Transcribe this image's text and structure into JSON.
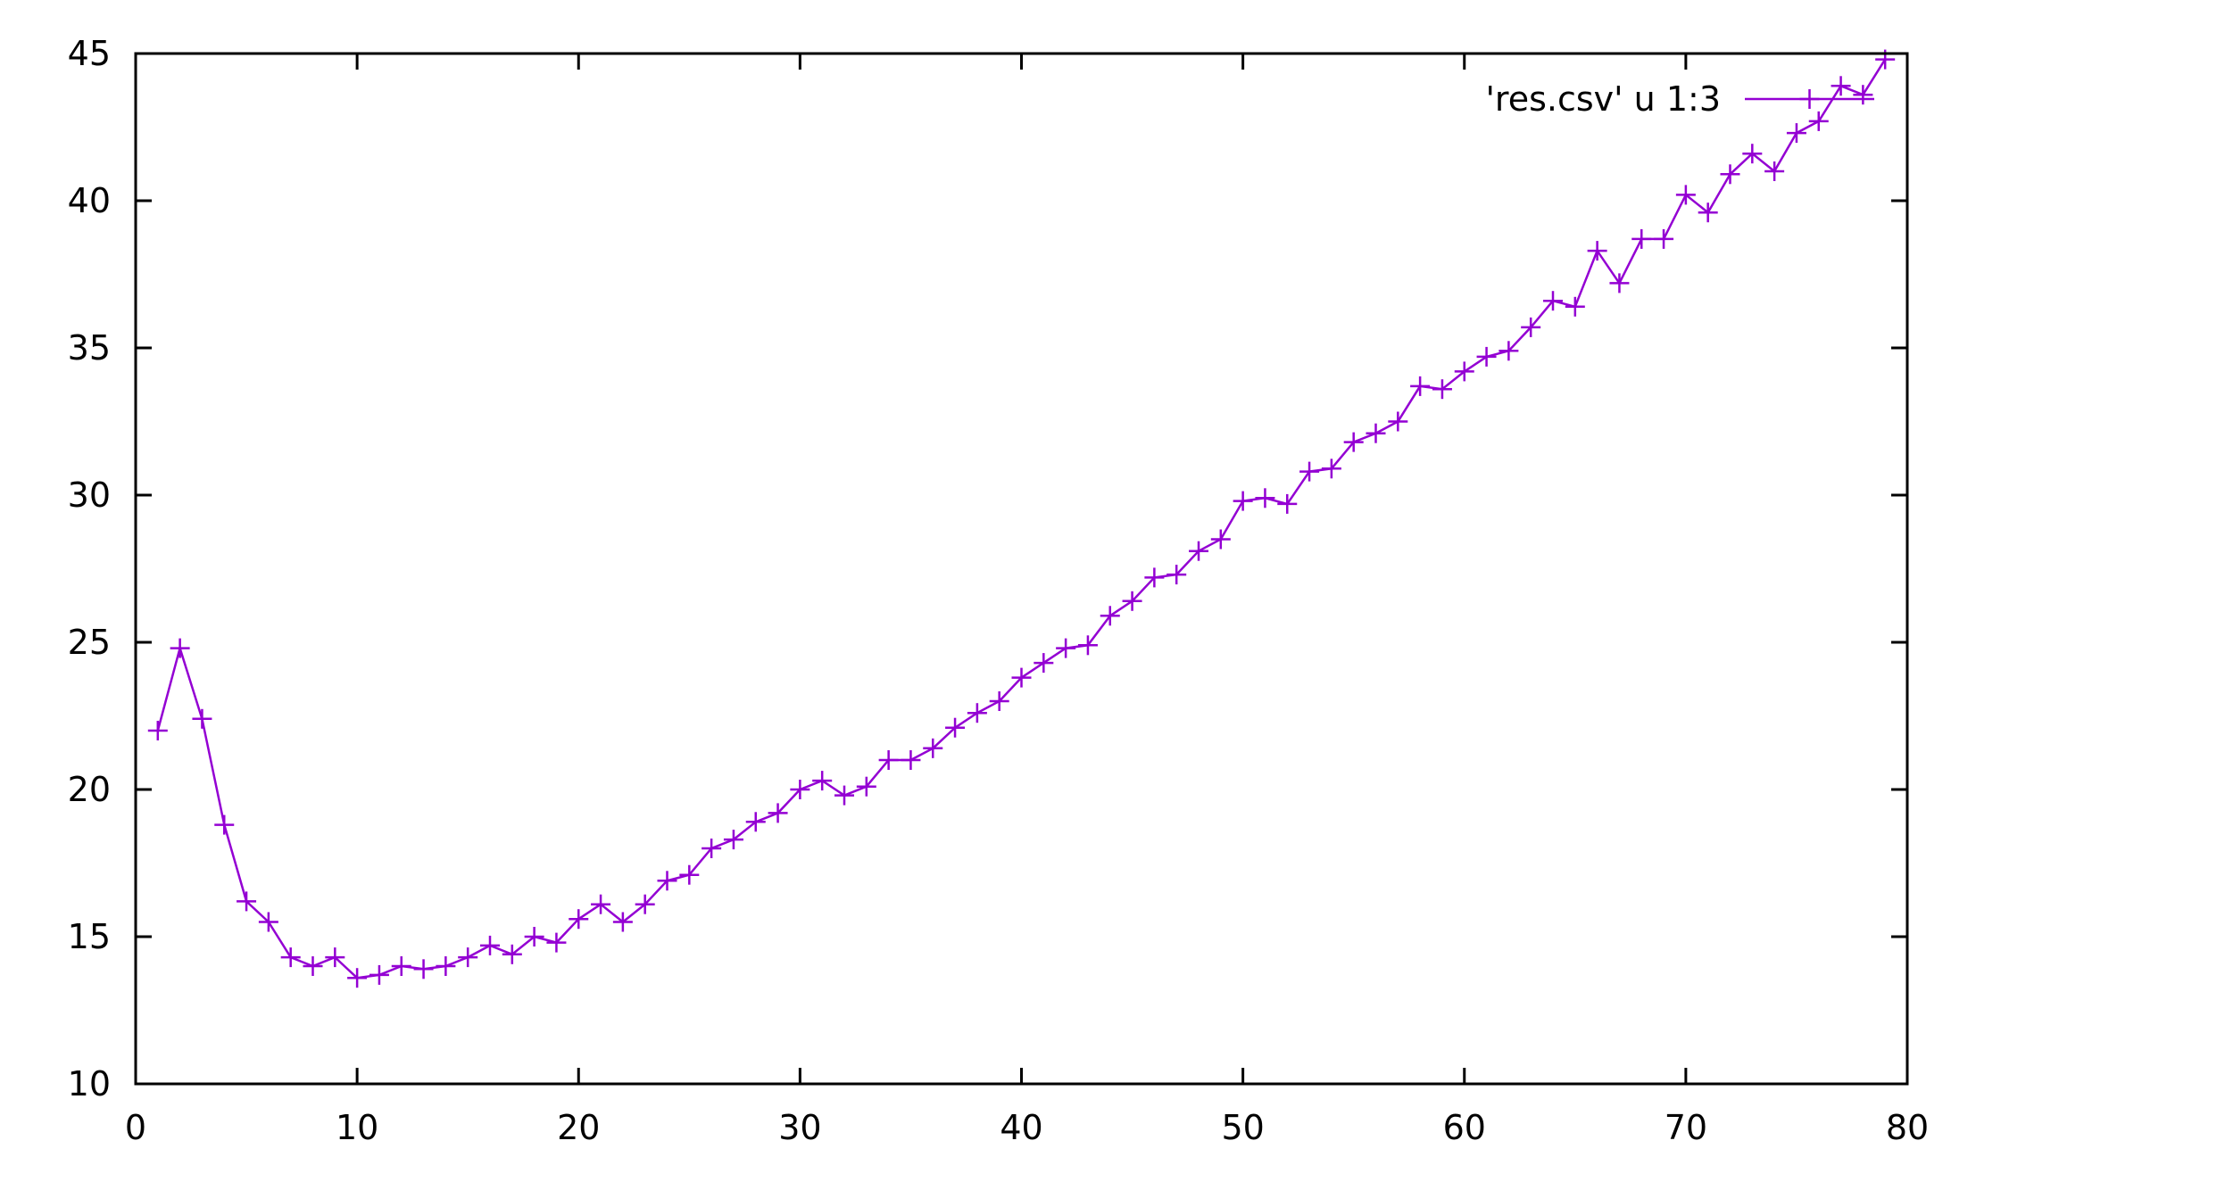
{
  "chart_data": {
    "type": "line",
    "title": "",
    "xlabel": "",
    "ylabel": "",
    "xlim": [
      0,
      80
    ],
    "ylim": [
      10,
      45
    ],
    "xticks": [
      0,
      10,
      20,
      30,
      40,
      50,
      60,
      70,
      80
    ],
    "yticks": [
      10,
      15,
      20,
      25,
      30,
      35,
      40,
      45
    ],
    "grid": false,
    "legend": {
      "position": "top-right"
    },
    "marker": "plus",
    "series": [
      {
        "name": "'res.csv' u 1:3",
        "color": "#9400d3",
        "x": [
          1,
          2,
          3,
          4,
          5,
          6,
          7,
          8,
          9,
          10,
          11,
          12,
          13,
          14,
          15,
          16,
          17,
          18,
          19,
          20,
          21,
          22,
          23,
          24,
          25,
          26,
          27,
          28,
          29,
          30,
          31,
          32,
          33,
          34,
          35,
          36,
          37,
          38,
          39,
          40,
          41,
          42,
          43,
          44,
          45,
          46,
          47,
          48,
          49,
          50,
          51,
          52,
          53,
          54,
          55,
          56,
          57,
          58,
          59,
          60,
          61,
          62,
          63,
          64,
          65,
          66,
          67,
          68,
          69,
          70,
          71,
          72,
          73,
          74,
          75,
          76,
          77,
          78,
          79
        ],
        "y": [
          22.0,
          24.8,
          22.4,
          18.8,
          16.2,
          15.5,
          14.3,
          14.0,
          14.3,
          13.6,
          13.7,
          14.0,
          13.9,
          14.0,
          14.3,
          14.7,
          14.4,
          15.0,
          14.8,
          15.6,
          16.1,
          15.5,
          16.1,
          16.9,
          17.1,
          18.0,
          18.3,
          18.9,
          19.2,
          20.0,
          20.3,
          19.8,
          20.1,
          21.0,
          21.0,
          21.4,
          22.1,
          22.6,
          23.0,
          23.8,
          24.3,
          24.8,
          24.9,
          25.9,
          26.4,
          27.2,
          27.3,
          28.1,
          28.5,
          29.8,
          29.9,
          29.7,
          30.8,
          30.9,
          31.8,
          32.1,
          32.5,
          33.7,
          33.6,
          34.2,
          34.7,
          34.9,
          35.7,
          36.6,
          36.4,
          38.3,
          37.2,
          38.7,
          38.7,
          40.2,
          39.6,
          40.9,
          41.6,
          41.0,
          42.3,
          42.7,
          43.9,
          43.6,
          44.8
        ]
      }
    ]
  }
}
